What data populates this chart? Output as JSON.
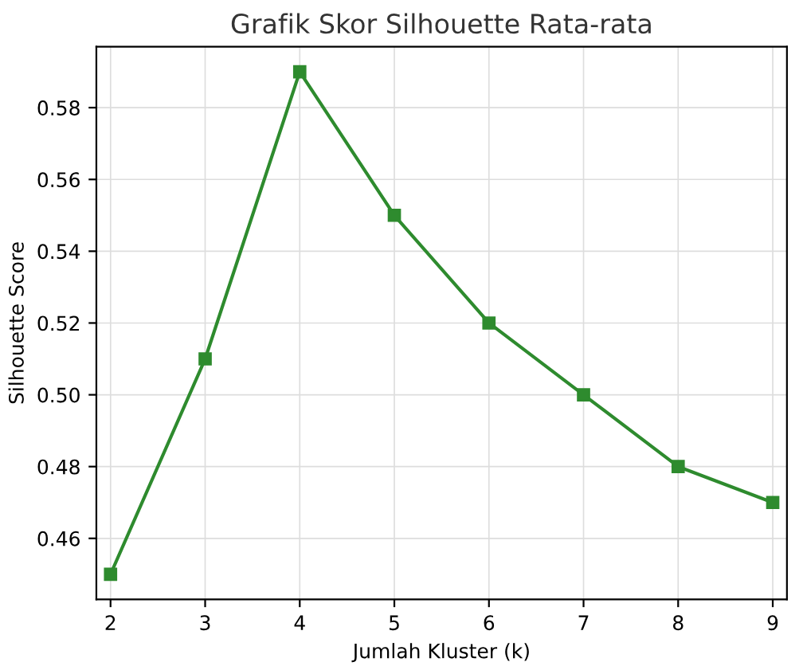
{
  "chart_data": {
    "type": "line",
    "title": "Grafik Skor Silhouette Rata-rata",
    "xlabel": "Jumlah Kluster (k)",
    "ylabel": "Silhouette Score",
    "x": [
      2,
      3,
      4,
      5,
      6,
      7,
      8,
      9
    ],
    "series": [
      {
        "color": "#2e8b2e",
        "values": [
          0.45,
          0.51,
          0.59,
          0.55,
          0.52,
          0.5,
          0.48,
          0.47
        ]
      }
    ],
    "xlim": [
      1.85,
      9.15
    ],
    "ylim": [
      0.443,
      0.597
    ],
    "xticks": [
      2,
      3,
      4,
      5,
      6,
      7,
      8,
      9
    ],
    "yticks": [
      {
        "value": 0.46,
        "label": "0.46"
      },
      {
        "value": 0.48,
        "label": "0.48"
      },
      {
        "value": 0.5,
        "label": "0.50"
      },
      {
        "value": 0.52,
        "label": "0.52"
      },
      {
        "value": 0.54,
        "label": "0.54"
      },
      {
        "value": 0.56,
        "label": "0.56"
      },
      {
        "value": 0.58,
        "label": "0.58"
      }
    ],
    "grid": true,
    "marker": "square",
    "line_style": "solid"
  }
}
